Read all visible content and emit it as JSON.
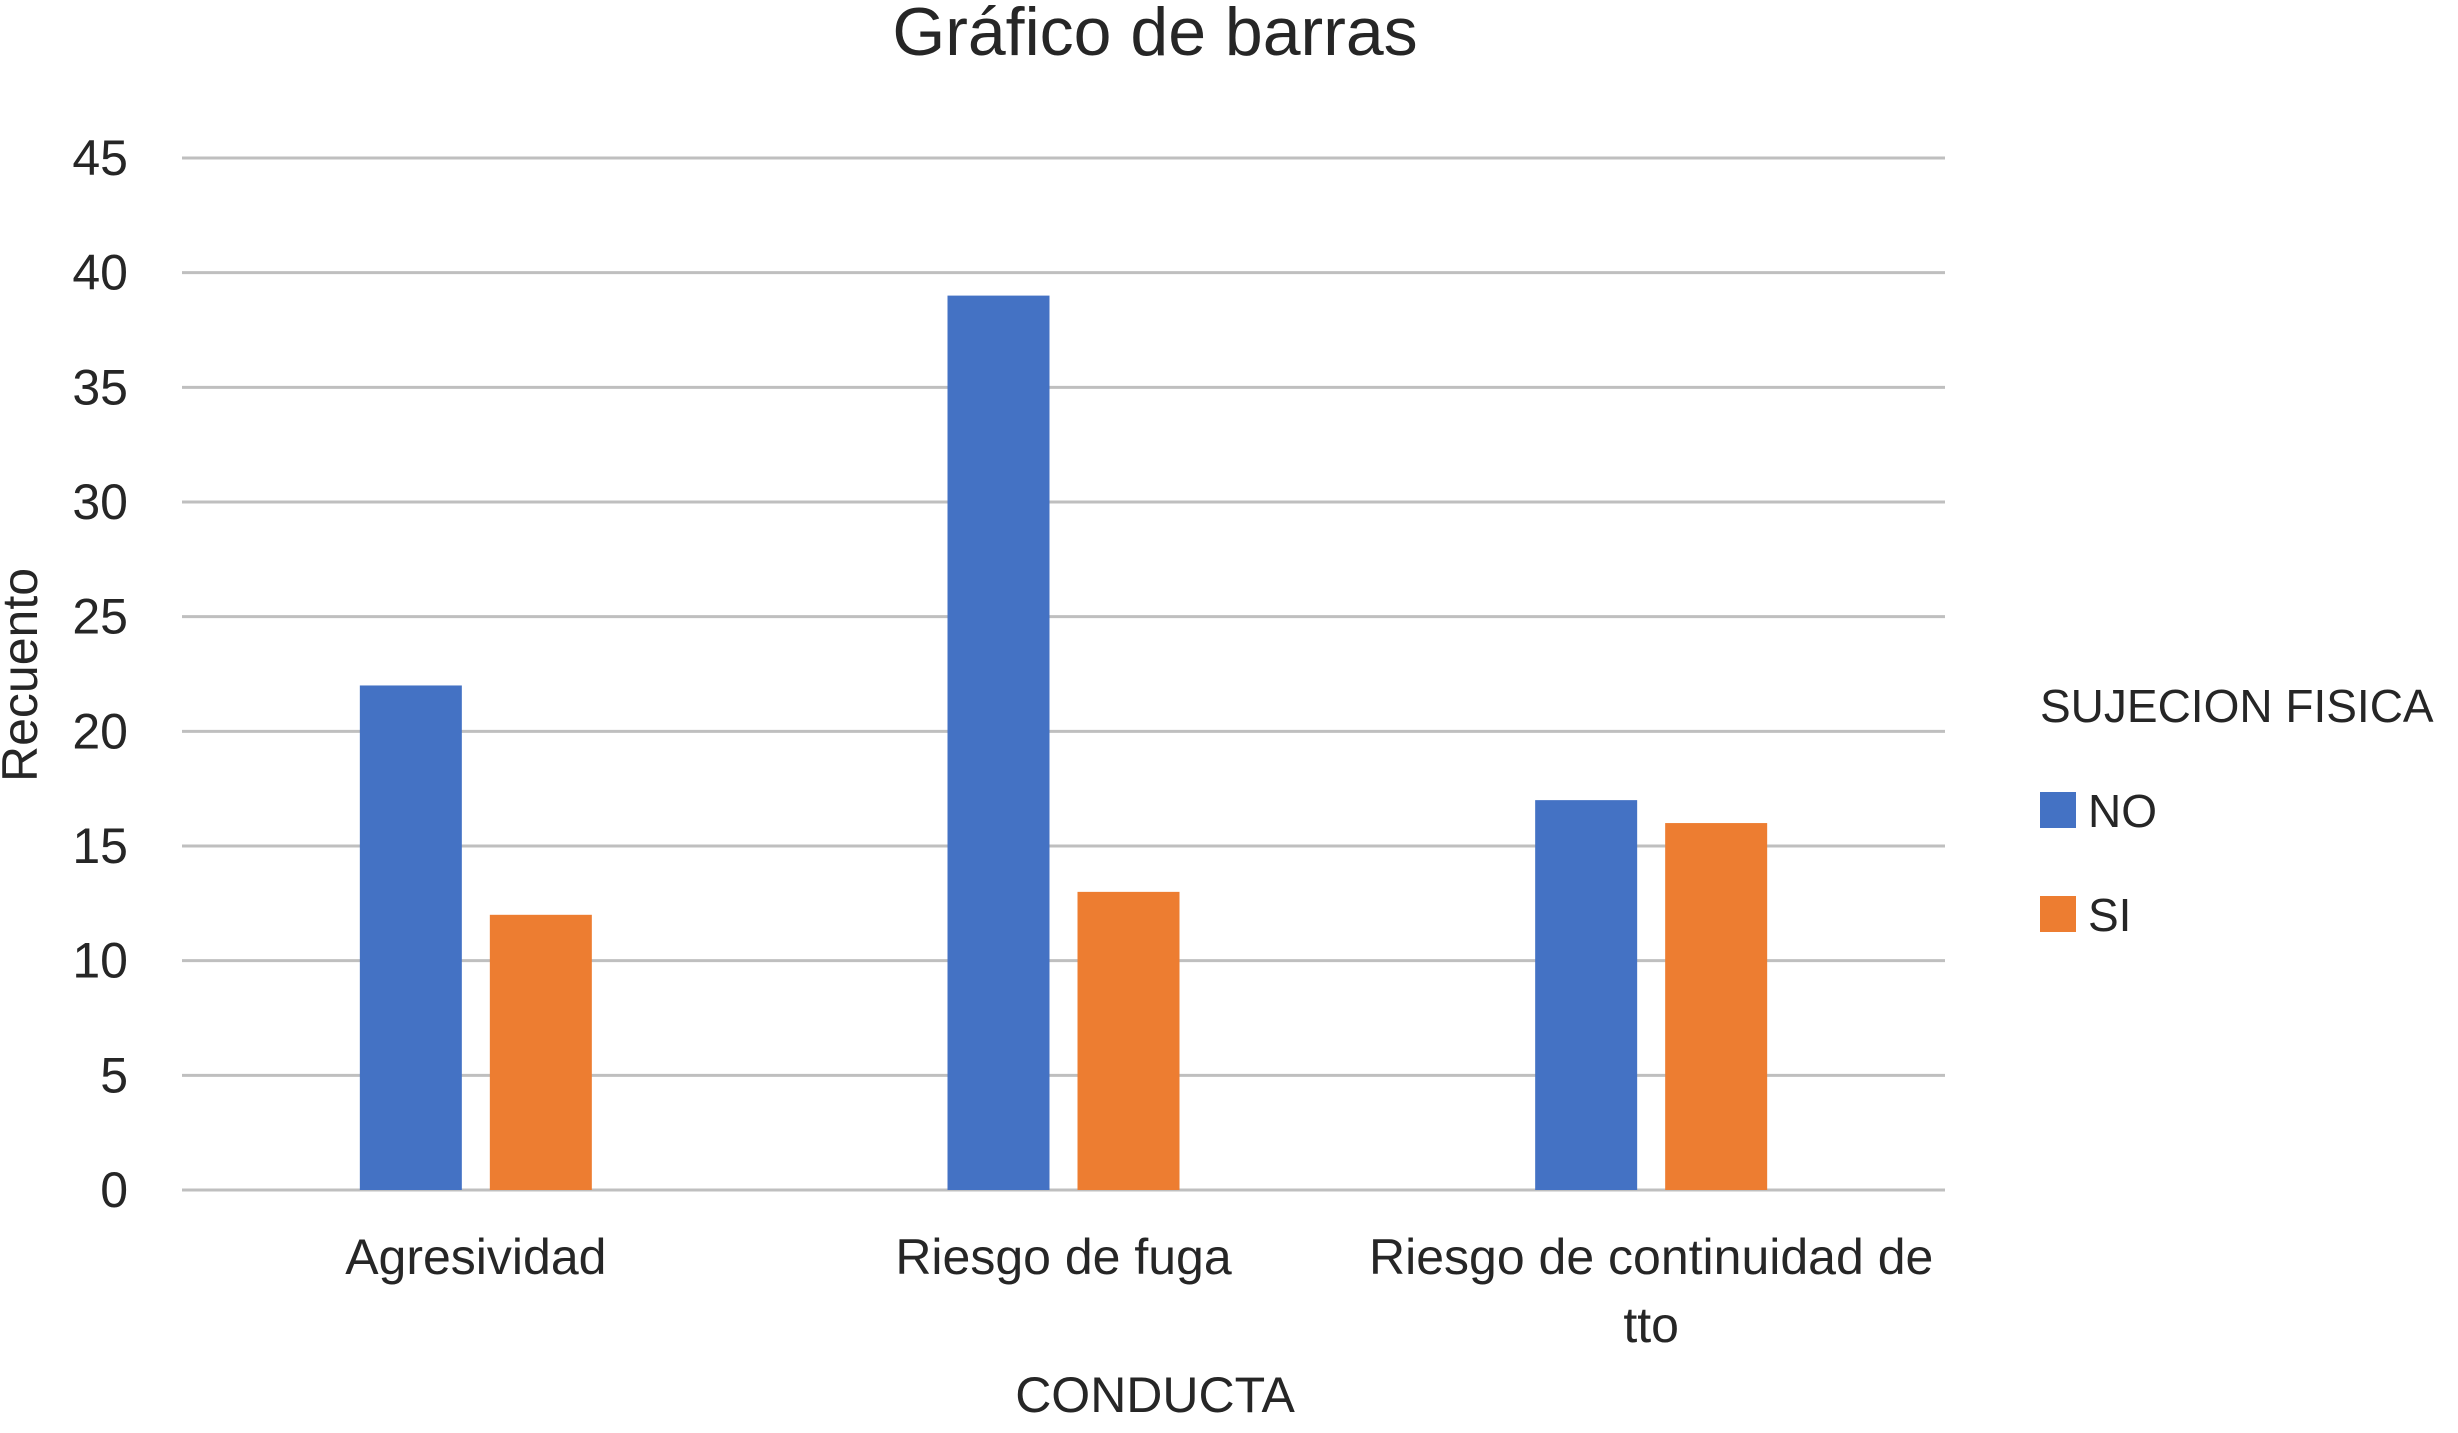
{
  "chart_data": {
    "type": "bar",
    "title": "Gráfico de barras",
    "xlabel": "CONDUCTA",
    "ylabel": "Recuento",
    "categories": [
      [
        "Agresividad"
      ],
      [
        "Riesgo de fuga"
      ],
      [
        "Riesgo de continuidad de",
        "tto"
      ]
    ],
    "series": [
      {
        "name": "NO",
        "values": [
          22,
          39,
          17
        ],
        "color": "#4472C4"
      },
      {
        "name": "SI",
        "values": [
          12,
          13,
          16
        ],
        "color": "#ED7D31"
      }
    ],
    "ylim": [
      0,
      45
    ],
    "yticks": [
      0,
      5,
      10,
      15,
      20,
      25,
      30,
      35,
      40,
      45
    ],
    "grid": true,
    "gridColor": "#BFBFBF",
    "legend": {
      "title": "SUJECION FISICA",
      "placement": "right"
    }
  }
}
